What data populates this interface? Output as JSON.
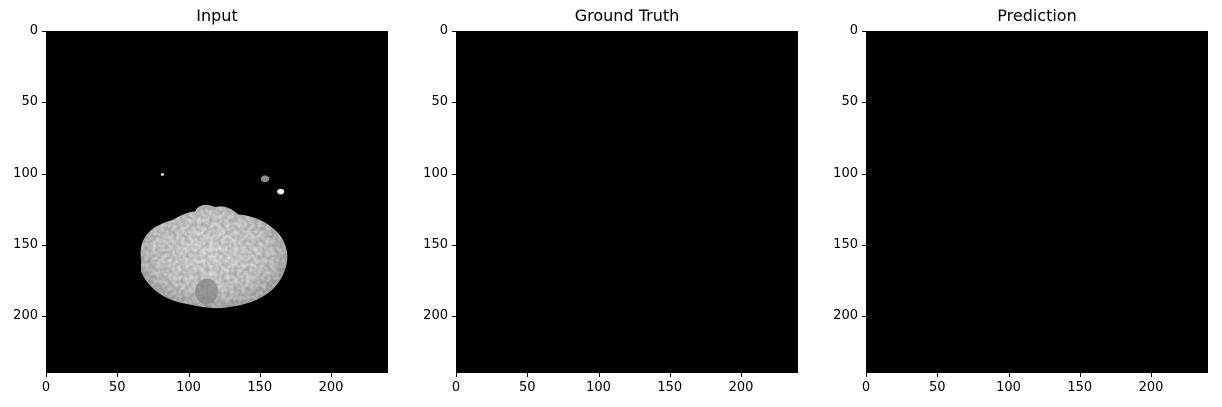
{
  "panels": [
    {
      "title": "Input",
      "image": "mri-brain-slice"
    },
    {
      "title": "Ground Truth",
      "image": "blank-mask"
    },
    {
      "title": "Prediction",
      "image": "blank-mask"
    }
  ],
  "axes": {
    "x_ticks": [
      "0",
      "50",
      "100",
      "150",
      "200"
    ],
    "y_ticks": [
      "0",
      "50",
      "100",
      "150",
      "200"
    ],
    "x_range": [
      0,
      240
    ],
    "y_range": [
      0,
      240
    ]
  },
  "colors": {
    "background": "#000000",
    "tissue": "#e6e6e6"
  }
}
